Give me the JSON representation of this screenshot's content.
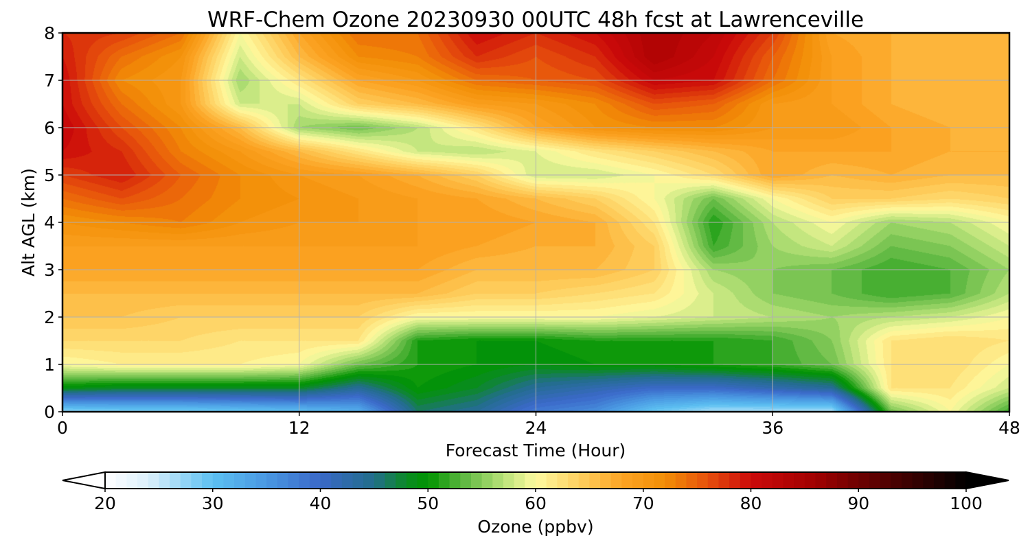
{
  "chart_data": {
    "type": "heatmap",
    "title": "WRF-Chem Ozone  20230930 00UTC 48h fcst at Lawrenceville",
    "xlabel": "Forecast Time (Hour)",
    "ylabel": "Alt AGL (km)",
    "xlim": [
      0,
      48
    ],
    "ylim": [
      0,
      8
    ],
    "xticks": [
      0,
      12,
      24,
      36,
      48
    ],
    "yticks": [
      0,
      1,
      2,
      3,
      4,
      5,
      6,
      7,
      8
    ],
    "grid": true,
    "x": [
      0,
      3,
      6,
      9,
      12,
      15,
      18,
      21,
      24,
      27,
      30,
      33,
      36,
      39,
      42,
      45,
      48
    ],
    "y": [
      0,
      0.5,
      1,
      1.5,
      2,
      2.5,
      3,
      3.5,
      4,
      4.5,
      5,
      5.5,
      6,
      6.5,
      7,
      7.5,
      8
    ],
    "z": [
      [
        27,
        28,
        28,
        29,
        30,
        32,
        46,
        44,
        38,
        36,
        29,
        26,
        26,
        26,
        54,
        60,
        52
      ],
      [
        49,
        48,
        48,
        48,
        48,
        44,
        50,
        48,
        44,
        42,
        40,
        40,
        42,
        44,
        62,
        62,
        58
      ],
      [
        60,
        61,
        61,
        61,
        60,
        54,
        51,
        50,
        49,
        50,
        50,
        51,
        52,
        54,
        62,
        63,
        60
      ],
      [
        63,
        63,
        63,
        62,
        62,
        62,
        51,
        50,
        50,
        51,
        51,
        51,
        52,
        55,
        62,
        63,
        62
      ],
      [
        65,
        65,
        64,
        64,
        64,
        64,
        60,
        60,
        60,
        60,
        59,
        58,
        57,
        56,
        57,
        58,
        60
      ],
      [
        66,
        66,
        66,
        66,
        66,
        66,
        66,
        64,
        64,
        63,
        62,
        58,
        55,
        54,
        52,
        53,
        57
      ],
      [
        68,
        68,
        68,
        68,
        68,
        68,
        68,
        66,
        66,
        66,
        64,
        56,
        55,
        54,
        52,
        53,
        56
      ],
      [
        69,
        69,
        69,
        69,
        69,
        69,
        69,
        68,
        67,
        67,
        64,
        52,
        56,
        58,
        54,
        55,
        58
      ],
      [
        71,
        72,
        73,
        71,
        70,
        70,
        69,
        69,
        68,
        67,
        62,
        51,
        57,
        60,
        56,
        57,
        60
      ],
      [
        74,
        76,
        74,
        72,
        71,
        70,
        69,
        68,
        66,
        64,
        60,
        54,
        60,
        64,
        64,
        63,
        64
      ],
      [
        77,
        79,
        75,
        72,
        70,
        69,
        67,
        64,
        58,
        58,
        60,
        63,
        68,
        66,
        67,
        66,
        66
      ],
      [
        80,
        78,
        73,
        70,
        66,
        62,
        58,
        57,
        59,
        62,
        64,
        66,
        68,
        68,
        68,
        67,
        67
      ],
      [
        81,
        76,
        72,
        66,
        56,
        54,
        57,
        62,
        68,
        71,
        72,
        72,
        70,
        70,
        68,
        67,
        66
      ],
      [
        80,
        74,
        70,
        58,
        58,
        64,
        66,
        69,
        70,
        72,
        76,
        75,
        70,
        69,
        67,
        66,
        66
      ],
      [
        80,
        72,
        70,
        56,
        62,
        68,
        70,
        74,
        75,
        76,
        81,
        80,
        74,
        69,
        67,
        66,
        66
      ],
      [
        79,
        74,
        71,
        58,
        66,
        72,
        73,
        78,
        76,
        78,
        84,
        81,
        75,
        69,
        67,
        66,
        66
      ],
      [
        78,
        77,
        74,
        60,
        68,
        74,
        74,
        80,
        78,
        80,
        84,
        82,
        77,
        68,
        67,
        66,
        66
      ]
    ],
    "colorbar": {
      "label": "Ozone  (ppbv)",
      "range": [
        20,
        100
      ],
      "ticks": [
        20,
        30,
        40,
        50,
        60,
        70,
        80,
        90,
        100
      ],
      "extend": "both",
      "levels_step": 1,
      "color_stops": [
        {
          "value": 20,
          "color": "#ffffff"
        },
        {
          "value": 24,
          "color": "#dcf0fb"
        },
        {
          "value": 30,
          "color": "#5cc0f2"
        },
        {
          "value": 35,
          "color": "#4a98e2"
        },
        {
          "value": 40,
          "color": "#3a68c8"
        },
        {
          "value": 45,
          "color": "#226e8a"
        },
        {
          "value": 48,
          "color": "#0b8a24"
        },
        {
          "value": 50,
          "color": "#009400"
        },
        {
          "value": 53,
          "color": "#56b43c"
        },
        {
          "value": 57,
          "color": "#b8e278"
        },
        {
          "value": 60,
          "color": "#fefaa0"
        },
        {
          "value": 64,
          "color": "#fed060"
        },
        {
          "value": 68,
          "color": "#fca424"
        },
        {
          "value": 72,
          "color": "#f28e06"
        },
        {
          "value": 76,
          "color": "#e6500c"
        },
        {
          "value": 80,
          "color": "#cc0a0a"
        },
        {
          "value": 86,
          "color": "#a00000"
        },
        {
          "value": 90,
          "color": "#6e0000"
        },
        {
          "value": 96,
          "color": "#2c0000"
        },
        {
          "value": 100,
          "color": "#000000"
        }
      ]
    }
  }
}
